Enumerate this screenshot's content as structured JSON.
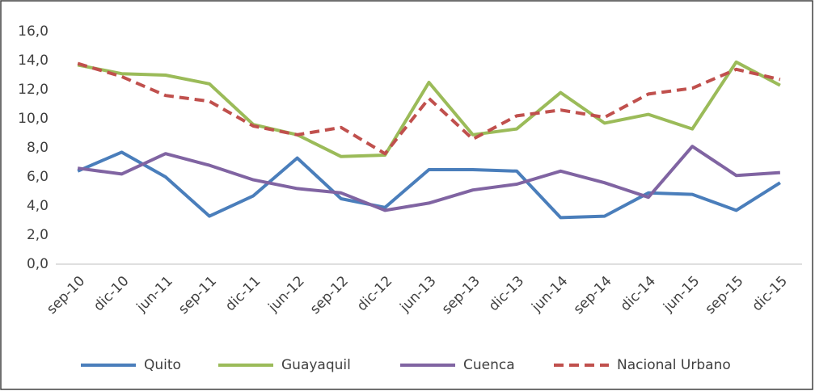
{
  "chart_data": {
    "type": "line",
    "categories": [
      "sep-10",
      "dic-10",
      "jun-11",
      "sep-11",
      "dic-11",
      "jun-12",
      "sep-12",
      "dic-12",
      "jun-13",
      "sep-13",
      "dic-13",
      "jun-14",
      "sep-14",
      "dic-14",
      "jun-15",
      "sep-15",
      "dic-15"
    ],
    "series": [
      {
        "name": "Quito",
        "color": "#4a7ebb",
        "values": [
          6.4,
          7.7,
          6.0,
          3.3,
          4.7,
          7.3,
          4.5,
          3.9,
          6.5,
          6.5,
          6.4,
          3.2,
          3.3,
          4.9,
          4.8,
          3.7,
          5.6
        ]
      },
      {
        "name": "Guayaquil",
        "color": "#9bbb59",
        "values": [
          13.7,
          13.1,
          13.0,
          12.4,
          9.6,
          8.9,
          7.4,
          7.5,
          12.5,
          8.9,
          9.3,
          11.8,
          9.7,
          10.3,
          9.3,
          13.9,
          12.3
        ]
      },
      {
        "name": "Cuenca",
        "color": "#8064a2",
        "values": [
          6.6,
          6.2,
          7.6,
          6.8,
          5.8,
          5.2,
          4.9,
          3.7,
          4.2,
          5.1,
          5.5,
          6.4,
          5.6,
          4.6,
          8.1,
          6.1,
          6.3
        ]
      },
      {
        "name": "Nacional Urbano",
        "color": "#c0504d",
        "dashed": true,
        "values": [
          13.8,
          12.9,
          11.6,
          11.2,
          9.5,
          8.9,
          9.4,
          7.6,
          11.4,
          8.6,
          10.2,
          10.6,
          10.1,
          11.7,
          12.1,
          13.4,
          12.7
        ]
      }
    ],
    "ylim": [
      0,
      16
    ],
    "yticks": [
      {
        "value": 0,
        "label": "0,0"
      },
      {
        "value": 2,
        "label": "2,0"
      },
      {
        "value": 4,
        "label": "4,0"
      },
      {
        "value": 6,
        "label": "6,0"
      },
      {
        "value": 8,
        "label": "8,0"
      },
      {
        "value": 10,
        "label": "10,0"
      },
      {
        "value": 12,
        "label": "12,0"
      },
      {
        "value": 14,
        "label": "14,0"
      },
      {
        "value": 16,
        "label": "16,0"
      }
    ],
    "grid": false,
    "legend": "bottom"
  }
}
